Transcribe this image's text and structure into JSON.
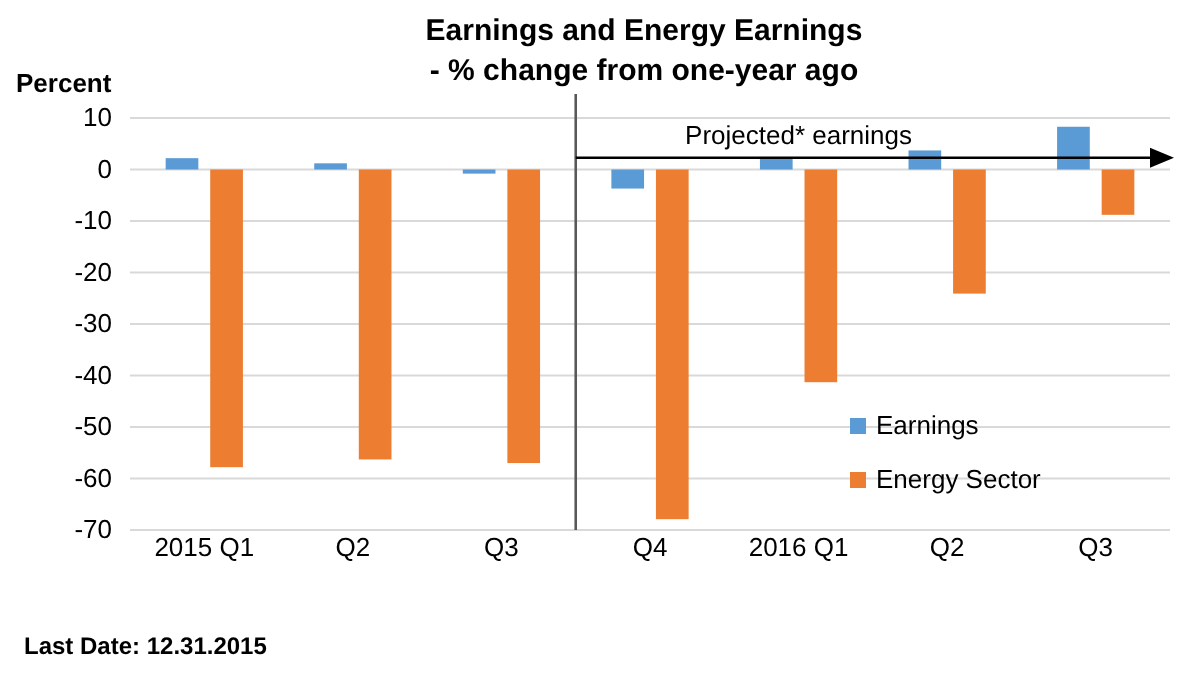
{
  "chart_data": {
    "type": "bar",
    "title": "Earnings and Energy Earnings",
    "subtitle": "- % change from one-year ago",
    "ylabel": "Percent",
    "categories": [
      "2015 Q1",
      "Q2",
      "Q3",
      "Q4",
      "2016 Q1",
      "Q2",
      "Q3"
    ],
    "series": [
      {
        "name": "Earnings",
        "color": "#5b9bd5",
        "values": [
          2.2,
          1.2,
          -0.8,
          -3.7,
          2.2,
          3.7,
          8.3
        ]
      },
      {
        "name": "Energy Sector",
        "color": "#ed7d31",
        "values": [
          -57.8,
          -56.3,
          -57.0,
          -67.9,
          -41.3,
          -24.1,
          -8.8
        ]
      }
    ],
    "ylim": [
      -70,
      10
    ],
    "yticks": [
      -70,
      -60,
      -50,
      -40,
      -30,
      -20,
      -10,
      0,
      10
    ],
    "grid": "y",
    "legend": "bottom right",
    "ref_lines": [
      {
        "axis": "x",
        "value": "Q4",
        "color": "#595959"
      }
    ],
    "annotations": [
      "Projected* earnings",
      "Last Date: 12.31.2015"
    ]
  }
}
